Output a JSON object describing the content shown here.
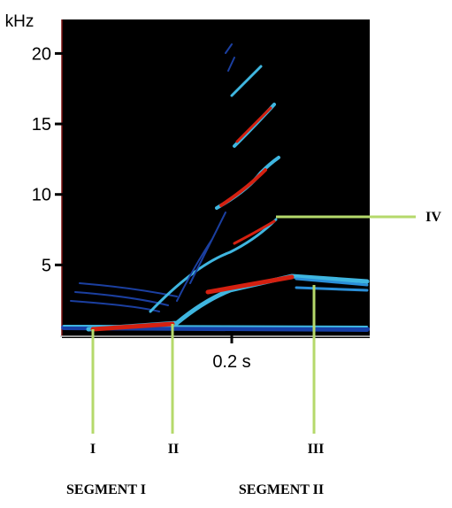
{
  "y_axis": {
    "unit": "kHz",
    "ticks": [
      20,
      15,
      10,
      5
    ]
  },
  "x_axis": {
    "label": "0.2 s"
  },
  "markers": [
    "I",
    "II",
    "III",
    "IV"
  ],
  "segments": [
    "SEGMENT I",
    "SEGMENT II"
  ]
}
